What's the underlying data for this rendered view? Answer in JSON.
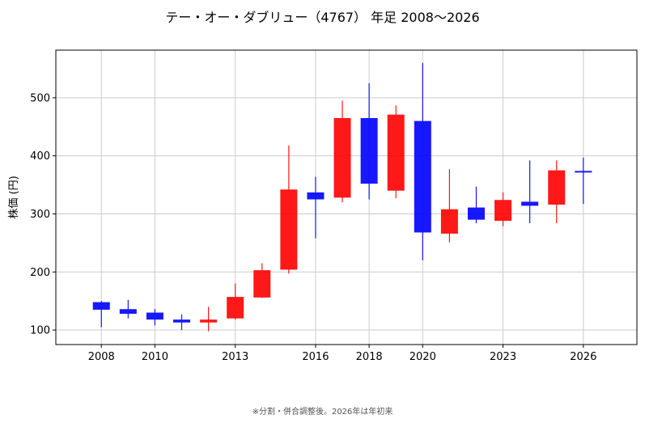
{
  "title": "テー・オー・ダブリュー（4767） 年足 2008〜2026",
  "footnote": "※分割・併合調整後。2026年は年初来",
  "colors": {
    "up": "#ff0000",
    "down": "#0000ff",
    "grid": "#cccccc"
  },
  "chart_data": {
    "type": "candlestick",
    "ylabel": "株価 (円)",
    "xlim": [
      2006.3,
      2028.0
    ],
    "ylim": [
      75,
      582
    ],
    "xticks": [
      2008,
      2010,
      2013,
      2016,
      2018,
      2020,
      2023,
      2026
    ],
    "yticks": [
      100,
      200,
      300,
      400,
      500
    ],
    "grid": true,
    "candles": [
      {
        "year": 2008,
        "open": 148,
        "high": 150,
        "low": 105,
        "close": 135
      },
      {
        "year": 2009,
        "open": 136,
        "high": 152,
        "low": 120,
        "close": 128
      },
      {
        "year": 2010,
        "open": 130,
        "high": 136,
        "low": 108,
        "close": 118
      },
      {
        "year": 2011,
        "open": 118,
        "high": 127,
        "low": 100,
        "close": 113
      },
      {
        "year": 2012,
        "open": 113,
        "high": 140,
        "low": 98,
        "close": 118
      },
      {
        "year": 2013,
        "open": 120,
        "high": 180,
        "low": 118,
        "close": 157
      },
      {
        "year": 2014,
        "open": 156,
        "high": 215,
        "low": 155,
        "close": 203
      },
      {
        "year": 2015,
        "open": 204,
        "high": 418,
        "low": 197,
        "close": 342
      },
      {
        "year": 2016,
        "open": 337,
        "high": 364,
        "low": 258,
        "close": 325
      },
      {
        "year": 2017,
        "open": 328,
        "high": 495,
        "low": 320,
        "close": 465
      },
      {
        "year": 2018,
        "open": 465,
        "high": 525,
        "low": 325,
        "close": 352
      },
      {
        "year": 2019,
        "open": 340,
        "high": 487,
        "low": 327,
        "close": 471
      },
      {
        "year": 2020,
        "open": 460,
        "high": 560,
        "low": 220,
        "close": 268
      },
      {
        "year": 2021,
        "open": 266,
        "high": 377,
        "low": 251,
        "close": 308
      },
      {
        "year": 2022,
        "open": 311,
        "high": 347,
        "low": 284,
        "close": 290
      },
      {
        "year": 2023,
        "open": 288,
        "high": 337,
        "low": 279,
        "close": 324
      },
      {
        "year": 2024,
        "open": 321,
        "high": 392,
        "low": 284,
        "close": 314
      },
      {
        "year": 2025,
        "open": 316,
        "high": 392,
        "low": 284,
        "close": 375
      },
      {
        "year": 2026,
        "open": 374,
        "high": 397,
        "low": 317,
        "close": 372
      }
    ]
  }
}
